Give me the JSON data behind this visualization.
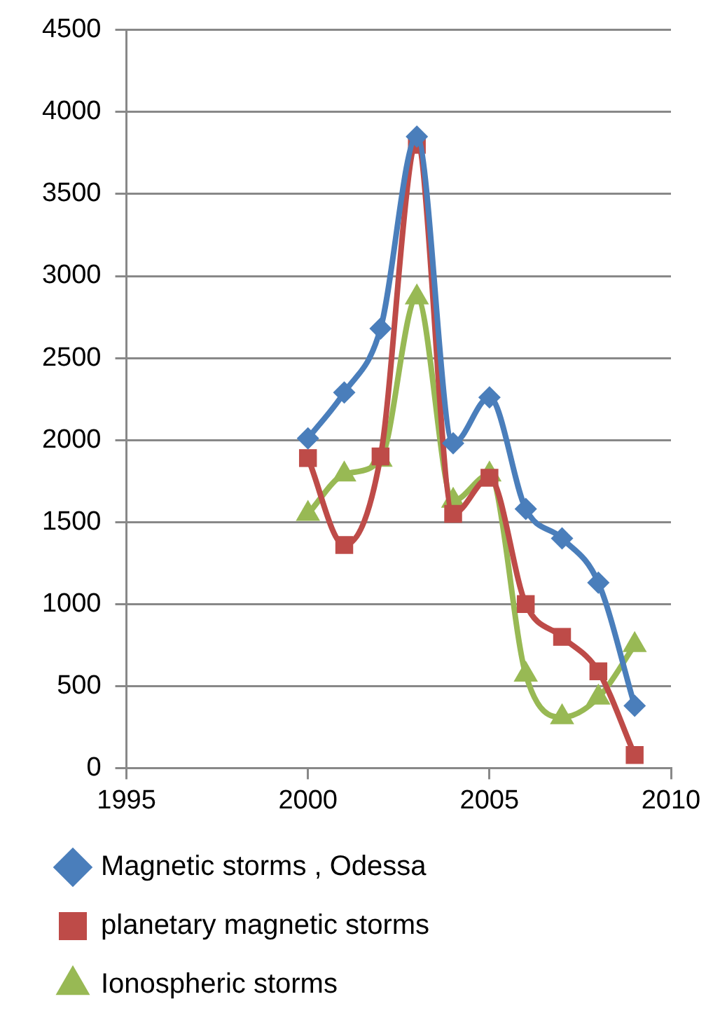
{
  "chart_data": {
    "type": "line",
    "x": [
      2000,
      2001,
      2002,
      2003,
      2004,
      2005,
      2006,
      2007,
      2008,
      2009
    ],
    "xlim": [
      1995,
      2010
    ],
    "xticks": [
      1995,
      2000,
      2005,
      2010
    ],
    "ylim": [
      0,
      4500
    ],
    "yticks": [
      0,
      500,
      1000,
      1500,
      2000,
      2500,
      3000,
      3500,
      4000,
      4500
    ],
    "grid": "y",
    "legend": "bottom",
    "series": [
      {
        "name": "Magnetic storms , Odessa",
        "color": "#4a7ebb",
        "marker": "diamond",
        "values": [
          2010,
          2290,
          2680,
          3850,
          1980,
          2260,
          1580,
          1400,
          1130,
          380
        ]
      },
      {
        "name": "planetary magnetic storms",
        "color": "#be4b48",
        "marker": "square",
        "values": [
          1890,
          1360,
          1900,
          3800,
          1550,
          1770,
          1000,
          800,
          590,
          80
        ]
      },
      {
        "name": "Ionospheric storms",
        "color": "#98b954",
        "marker": "triangle",
        "values": [
          1550,
          1790,
          1880,
          2870,
          1630,
          1790,
          570,
          310,
          430,
          750
        ]
      }
    ]
  }
}
